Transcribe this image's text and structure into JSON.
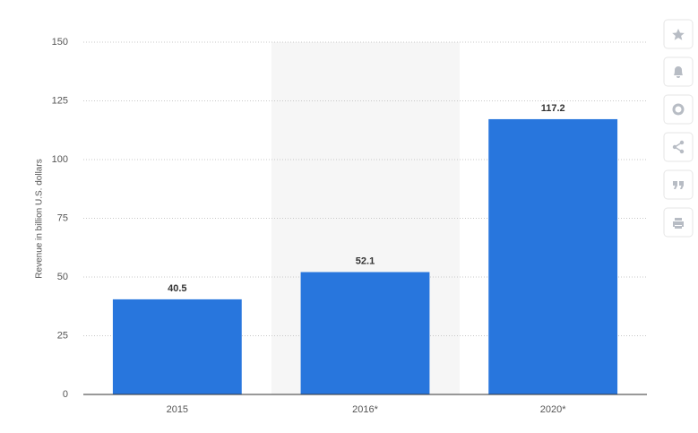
{
  "chart_data": {
    "type": "bar",
    "y_label": "Revenue in billion U.S. dollars",
    "categories": [
      "2015",
      "2016*",
      "2020*"
    ],
    "values": [
      40.5,
      52.1,
      117.2
    ],
    "color": "#2876dd",
    "ylim": [
      0,
      150
    ],
    "yticks": [
      0,
      25,
      50,
      75,
      100,
      125,
      150
    ],
    "grid": true
  }
}
